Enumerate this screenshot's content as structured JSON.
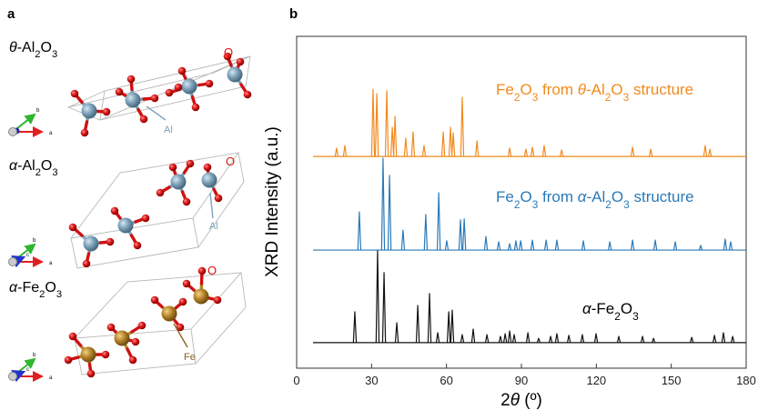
{
  "panel_a": {
    "label": "a",
    "structures": [
      {
        "name_parts": [
          "θ",
          "-Al",
          "2",
          "O",
          "3"
        ],
        "atom_labels": [
          "O",
          "Al"
        ],
        "triad_labels": [
          "b",
          "a"
        ]
      },
      {
        "name_parts": [
          "α",
          "-Al",
          "2",
          "O",
          "3"
        ],
        "atom_labels": [
          "O",
          "Al"
        ],
        "triad_labels": [
          "b",
          "c",
          "a"
        ]
      },
      {
        "name_parts": [
          "α",
          "-Fe",
          "2",
          "O",
          "3"
        ],
        "atom_labels": [
          "O",
          "Fe"
        ],
        "triad_labels": [
          "b",
          "c",
          "a"
        ]
      }
    ]
  },
  "chart_data": {
    "type": "peaks",
    "panel_label": "b",
    "ylabel": "XRD Intensity (a.u.)",
    "xlabel_parts": [
      "2",
      "θ",
      " (º)"
    ],
    "xlim": [
      0,
      180
    ],
    "xticks": [
      0,
      30,
      60,
      90,
      120,
      150,
      180
    ],
    "ylim": [
      0,
      100
    ],
    "series": [
      {
        "label_parts": [
          "Fe",
          "2",
          "O",
          "3",
          " from ",
          "θ",
          "-Al",
          "2",
          "O",
          "3",
          " structure"
        ],
        "color": "#f28a1e",
        "baseline": 63.8,
        "x": [
          16.0,
          19.3,
          30.6,
          32.1,
          36.1,
          38.3,
          39.4,
          43.7,
          46.6,
          51.0,
          58.7,
          61.6,
          62.7,
          66.3,
          72.2,
          85.3,
          91.8,
          94.4,
          99.1,
          106.1,
          134.5,
          141.8,
          163.6,
          165.5
        ],
        "values": [
          66.3,
          67.1,
          84.1,
          82.7,
          83.6,
          72.6,
          75.9,
          69.3,
          71.2,
          67.1,
          71.2,
          72.6,
          70.9,
          81.6,
          68.5,
          66.3,
          66.0,
          66.6,
          67.1,
          65.8,
          66.6,
          66.0,
          67.1,
          66.0
        ]
      },
      {
        "label_parts": [
          "Fe",
          "2",
          "O",
          "3",
          " from ",
          "α",
          "-Al",
          "2",
          "O",
          "3",
          " structure"
        ],
        "color": "#2a7ab8",
        "baseline": 35.6,
        "x": [
          25.1,
          34.6,
          37.2,
          42.6,
          51.7,
          56.9,
          60.1,
          65.6,
          67.1,
          75.8,
          80.9,
          85.3,
          87.8,
          89.7,
          94.4,
          99.9,
          104.2,
          114.8,
          125.4,
          134.5,
          143.6,
          151.6,
          161.8,
          171.6,
          173.8
        ],
        "values": [
          47.1,
          63.3,
          58.1,
          41.6,
          46.3,
          52.9,
          38.4,
          44.7,
          45.0,
          39.7,
          38.1,
          37.5,
          38.4,
          38.4,
          38.6,
          38.6,
          38.6,
          38.4,
          38.1,
          38.6,
          38.6,
          38.1,
          37.0,
          38.9,
          38.1
        ]
      },
      {
        "label_parts": [
          "α",
          "-Fe",
          "2",
          "O",
          "3"
        ],
        "color": "#111111",
        "baseline": 7.7,
        "x": [
          23.3,
          32.4,
          35.0,
          40.1,
          48.5,
          53.2,
          56.5,
          60.9,
          62.3,
          66.3,
          70.7,
          76.2,
          81.6,
          83.5,
          85.3,
          87.1,
          92.6,
          96.9,
          101.7,
          104.2,
          109.0,
          114.4,
          119.9,
          129.0,
          138.5,
          142.9,
          158.2,
          167.3,
          170.9,
          174.6
        ],
        "values": [
          17.0,
          35.3,
          28.8,
          13.7,
          18.9,
          22.5,
          10.7,
          17.0,
          17.5,
          10.1,
          11.8,
          10.1,
          9.6,
          10.4,
          11.2,
          10.1,
          10.7,
          9.0,
          9.6,
          10.4,
          9.9,
          10.1,
          10.4,
          9.6,
          9.6,
          9.0,
          9.3,
          9.9,
          10.7,
          9.6
        ]
      }
    ]
  }
}
